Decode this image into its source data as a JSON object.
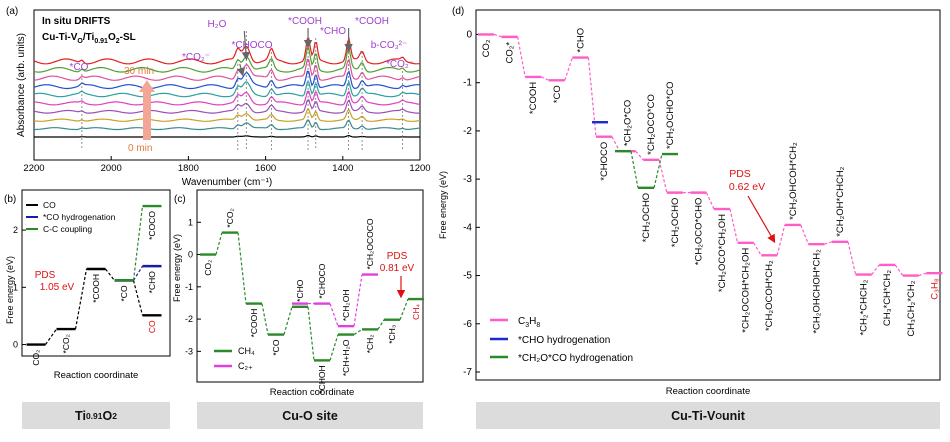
{
  "chart_data": [
    {
      "id": "a",
      "panel_label": "(a)",
      "type": "line",
      "title_lines": [
        "In situ DRIFTS",
        "Cu-Ti-V",
        "O",
        "/Ti",
        "0.91",
        "O",
        "2",
        "-SL"
      ],
      "ylabel": "Absorbance (arb. units)",
      "xlabel": "Wavenumber (cm⁻¹)",
      "x_ticks": [
        "2200",
        "2000",
        "1800",
        "1600",
        "1400",
        "1200"
      ],
      "xlim": [
        2200,
        1200
      ],
      "time_start": "0 min",
      "time_end": "30 min",
      "peak_labels": [
        {
          "text": "*CO",
          "x": 2076
        },
        {
          "text": "*CO₂⁻",
          "x": 1672
        },
        {
          "text": "H₂O",
          "x": 1650
        },
        {
          "text": "*CHOCO",
          "x": 1585
        },
        {
          "text": "*COOH",
          "x": 1490
        },
        {
          "text": "*CHO",
          "x": 1470
        },
        {
          "text": "*COOH",
          "x": 1385
        },
        {
          "text": "b-CO₃²⁻",
          "x": 1350
        },
        {
          "text": "*CO₂⁻",
          "x": 1245
        }
      ],
      "series_colors": [
        "#000000",
        "#3a8a8a",
        "#c8a020",
        "#9a50b8",
        "#e040c0",
        "#2aa0a0",
        "#2050d0",
        "#e0509a",
        "#4fa030",
        "#e02020"
      ],
      "series_count": 10
    },
    {
      "id": "b",
      "panel_label": "(b)",
      "type": "line",
      "ylabel": "Free energy (eV)",
      "xlabel": "Reaction coordinate",
      "ylim": [
        -0.2,
        2.7
      ],
      "y_ticks": [
        "0",
        "1",
        "2"
      ],
      "legend": [
        "CO",
        "*CO hydrogenation",
        "C-C coupling"
      ],
      "series": [
        {
          "name": "CO",
          "color": "#000000",
          "levels": [
            0.0,
            0.27,
            1.32,
            1.12,
            0.51
          ],
          "labels": [
            "CO₂",
            "*CO₂",
            "*COOH",
            "*CO",
            "CO"
          ]
        },
        {
          "name": "*CO hydrogenation",
          "color": "#1a1aa8",
          "levels": [
            1.12,
            1.37
          ],
          "labels": [
            "*CO",
            "*CHO"
          ]
        },
        {
          "name": "C-C coupling",
          "color": "#2a8a2a",
          "levels": [
            1.12,
            2.42
          ],
          "labels": [
            "*CO",
            "*COCO"
          ]
        }
      ],
      "pds_label": "PDS",
      "pds_value": "1.05 eV"
    },
    {
      "id": "c",
      "panel_label": "(c)",
      "type": "line",
      "ylabel": "Free energy (eV)",
      "xlabel": "Reaction coordinate",
      "ylim": [
        -3.95,
        2.0
      ],
      "y_ticks": [
        "1",
        "0",
        "-1",
        "-2",
        "-3"
      ],
      "legend": [
        "CH₄",
        "C₂₊"
      ],
      "series": [
        {
          "name": "CH₄",
          "color": "#2a8a2a",
          "levels": [
            0.0,
            0.68,
            -1.52,
            -2.48,
            -1.62,
            -3.28,
            -2.48,
            -2.32,
            -2.02,
            -1.38
          ],
          "labels": [
            "CO₂",
            "*CO₂",
            "*COOH",
            "*CO",
            "*CHO",
            "*CHOH",
            "*CH+H₂O",
            "*CH₂",
            "*CH₃",
            "CH₄"
          ]
        },
        {
          "name": "C₂₊",
          "color": "#e040e0",
          "levels": [
            -1.52,
            -1.52,
            -2.22,
            -0.62
          ],
          "labels": [
            "*CHO",
            "*CHOCO",
            "*CH₂OH",
            "*CH₂OCOCO"
          ]
        }
      ],
      "pds_label": "PDS",
      "pds_value": "0.81 eV"
    },
    {
      "id": "d",
      "panel_label": "(d)",
      "type": "line",
      "ylabel": "Free energy (eV)",
      "xlabel": "Reaction coordinate",
      "ylim": [
        -7.0,
        0.3
      ],
      "y_ticks": [
        "0",
        "-1",
        "-2",
        "-3",
        "-4",
        "-5",
        "-6",
        "-7"
      ],
      "legend": [
        "C₃H₈",
        "*CHO hydrogenation",
        "*CH₂O*CO hydrogenation"
      ],
      "series": [
        {
          "name": "C₃H₈",
          "color": "#ff5cc8",
          "levels": [
            0.0,
            -0.05,
            -0.88,
            -0.95,
            -0.48,
            -2.12,
            -2.42,
            -2.6,
            -3.28,
            -3.28,
            -3.62,
            -4.32,
            -4.58,
            -3.95,
            -4.35,
            -4.3,
            -4.98,
            -4.78,
            -5.0,
            -4.95
          ],
          "labels": [
            "CO₂",
            "CO₂*",
            "*COOH",
            "*CO",
            "*CHO",
            "*CHOCO",
            "*CH₂O*CO",
            "*CH₂OCO*CO",
            "*CH₂OCHO",
            "*CH₂OCO*CHO",
            "*CH₂OCO*CH₂OH",
            "*CH₂OCOH*CH₂OH",
            "*CH₂OCOH*CH₂",
            "*CH₂OHCOH*CH₂",
            "*CH₂OHCHOH*CH₂",
            "*CH₂OH*CHCH₂",
            "*CH₂*CHCH₂",
            "CH₃*CH*CH₂",
            "CH₃CH₂*CH₂",
            "C₃H₈"
          ]
        },
        {
          "name": "*CHO hydrogenation",
          "color": "#1a2ad0",
          "levels": [
            -1.82
          ],
          "labels": []
        },
        {
          "name": "*CH₂O*CO hydrogenation",
          "color": "#2a8a2a",
          "levels": [
            -2.42,
            -3.18,
            -2.48
          ],
          "labels": [
            "*CH₂O*CO",
            "*CH₂OCHO",
            "*CH₂OCHO*CO"
          ]
        }
      ],
      "pds_label": "PDS",
      "pds_value": "0.62 eV"
    }
  ],
  "footers": {
    "b": {
      "base": "Ti",
      "sub": "0.91",
      "rest": "O",
      "sub2": "2"
    },
    "c": {
      "text": "Cu-O site"
    },
    "d": {
      "base": "Cu-Ti-V",
      "sub": "O",
      "rest": " unit"
    }
  }
}
